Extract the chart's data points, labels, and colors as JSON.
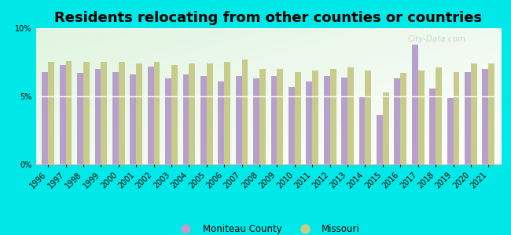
{
  "title": "Residents relocating from other counties or countries",
  "years": [
    1996,
    1997,
    1998,
    1999,
    2000,
    2001,
    2002,
    2003,
    2004,
    2005,
    2006,
    2007,
    2008,
    2009,
    2010,
    2011,
    2012,
    2013,
    2014,
    2015,
    2016,
    2017,
    2018,
    2019,
    2020,
    2021
  ],
  "moniteau": [
    6.8,
    7.3,
    6.7,
    7.0,
    6.8,
    6.6,
    7.2,
    6.3,
    6.6,
    6.5,
    6.1,
    6.5,
    6.3,
    6.5,
    5.7,
    6.1,
    6.5,
    6.4,
    5.0,
    3.6,
    6.3,
    8.8,
    5.6,
    4.9,
    6.8,
    7.0
  ],
  "missouri": [
    7.5,
    7.6,
    7.5,
    7.5,
    7.5,
    7.4,
    7.5,
    7.3,
    7.4,
    7.4,
    7.5,
    7.7,
    7.0,
    7.0,
    6.8,
    6.9,
    7.0,
    7.1,
    6.9,
    5.3,
    6.7,
    6.9,
    7.1,
    6.8,
    7.4,
    7.4
  ],
  "moniteau_color": "#b8a0cc",
  "missouri_color": "#c8cc8a",
  "outer_background": "#00e8e8",
  "ylim": [
    0,
    10
  ],
  "yticks": [
    0,
    5,
    10
  ],
  "ytick_labels": [
    "0%",
    "5%",
    "10%"
  ],
  "bar_width": 0.35,
  "legend_moniteau": "Moniteau County",
  "legend_missouri": "Missouri",
  "title_fontsize": 13,
  "tick_fontsize": 7
}
